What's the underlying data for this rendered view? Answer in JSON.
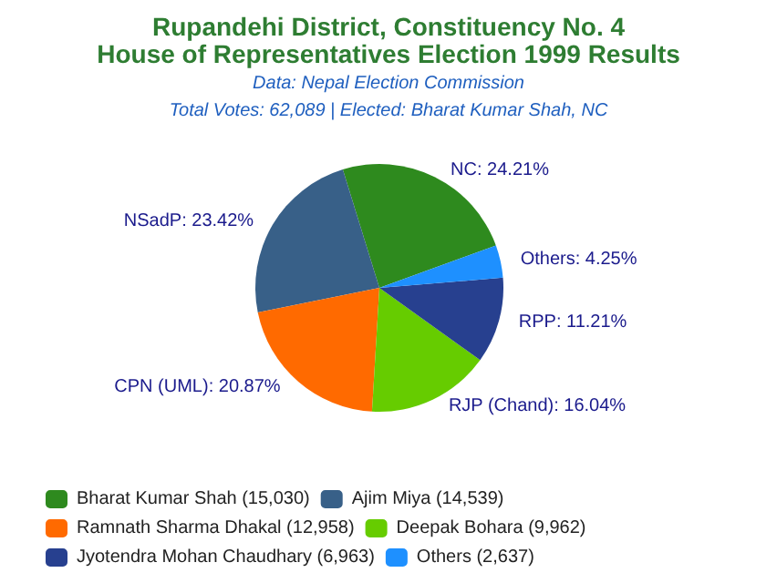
{
  "chart_data": {
    "type": "pie",
    "title": "Rupandehi District, Constituency No. 4\nHouse of Representatives Election 1999 Results",
    "subtitle": "Data: Nepal Election Commission",
    "annotations": [
      "Total Votes: 62,089 | Elected: Bharat Kumar Shah, NC"
    ],
    "categories": [
      "Bharat Kumar Shah (15,030)",
      "Ajim Miya (14,539)",
      "Ramnath Sharma Dhakal (12,958)",
      "Deepak Bohara (9,962)",
      "Jyotendra Mohan Chaudhary (6,963)",
      "Others (2,637)"
    ],
    "values": [
      24.21,
      23.42,
      20.87,
      16.04,
      11.21,
      4.25
    ],
    "value_labels": [
      "NC: 24.21%",
      "NSadP: 23.42%",
      "CPN (UML): 20.87%",
      "RJP (Chand): 16.04%",
      "RPP: 11.21%",
      "Others: 4.25%"
    ],
    "colors": [
      "#2e8a1e",
      "#386088",
      "#ff6a00",
      "#66cc00",
      "#27408f",
      "#1e90ff"
    ],
    "legend": "bottom"
  }
}
